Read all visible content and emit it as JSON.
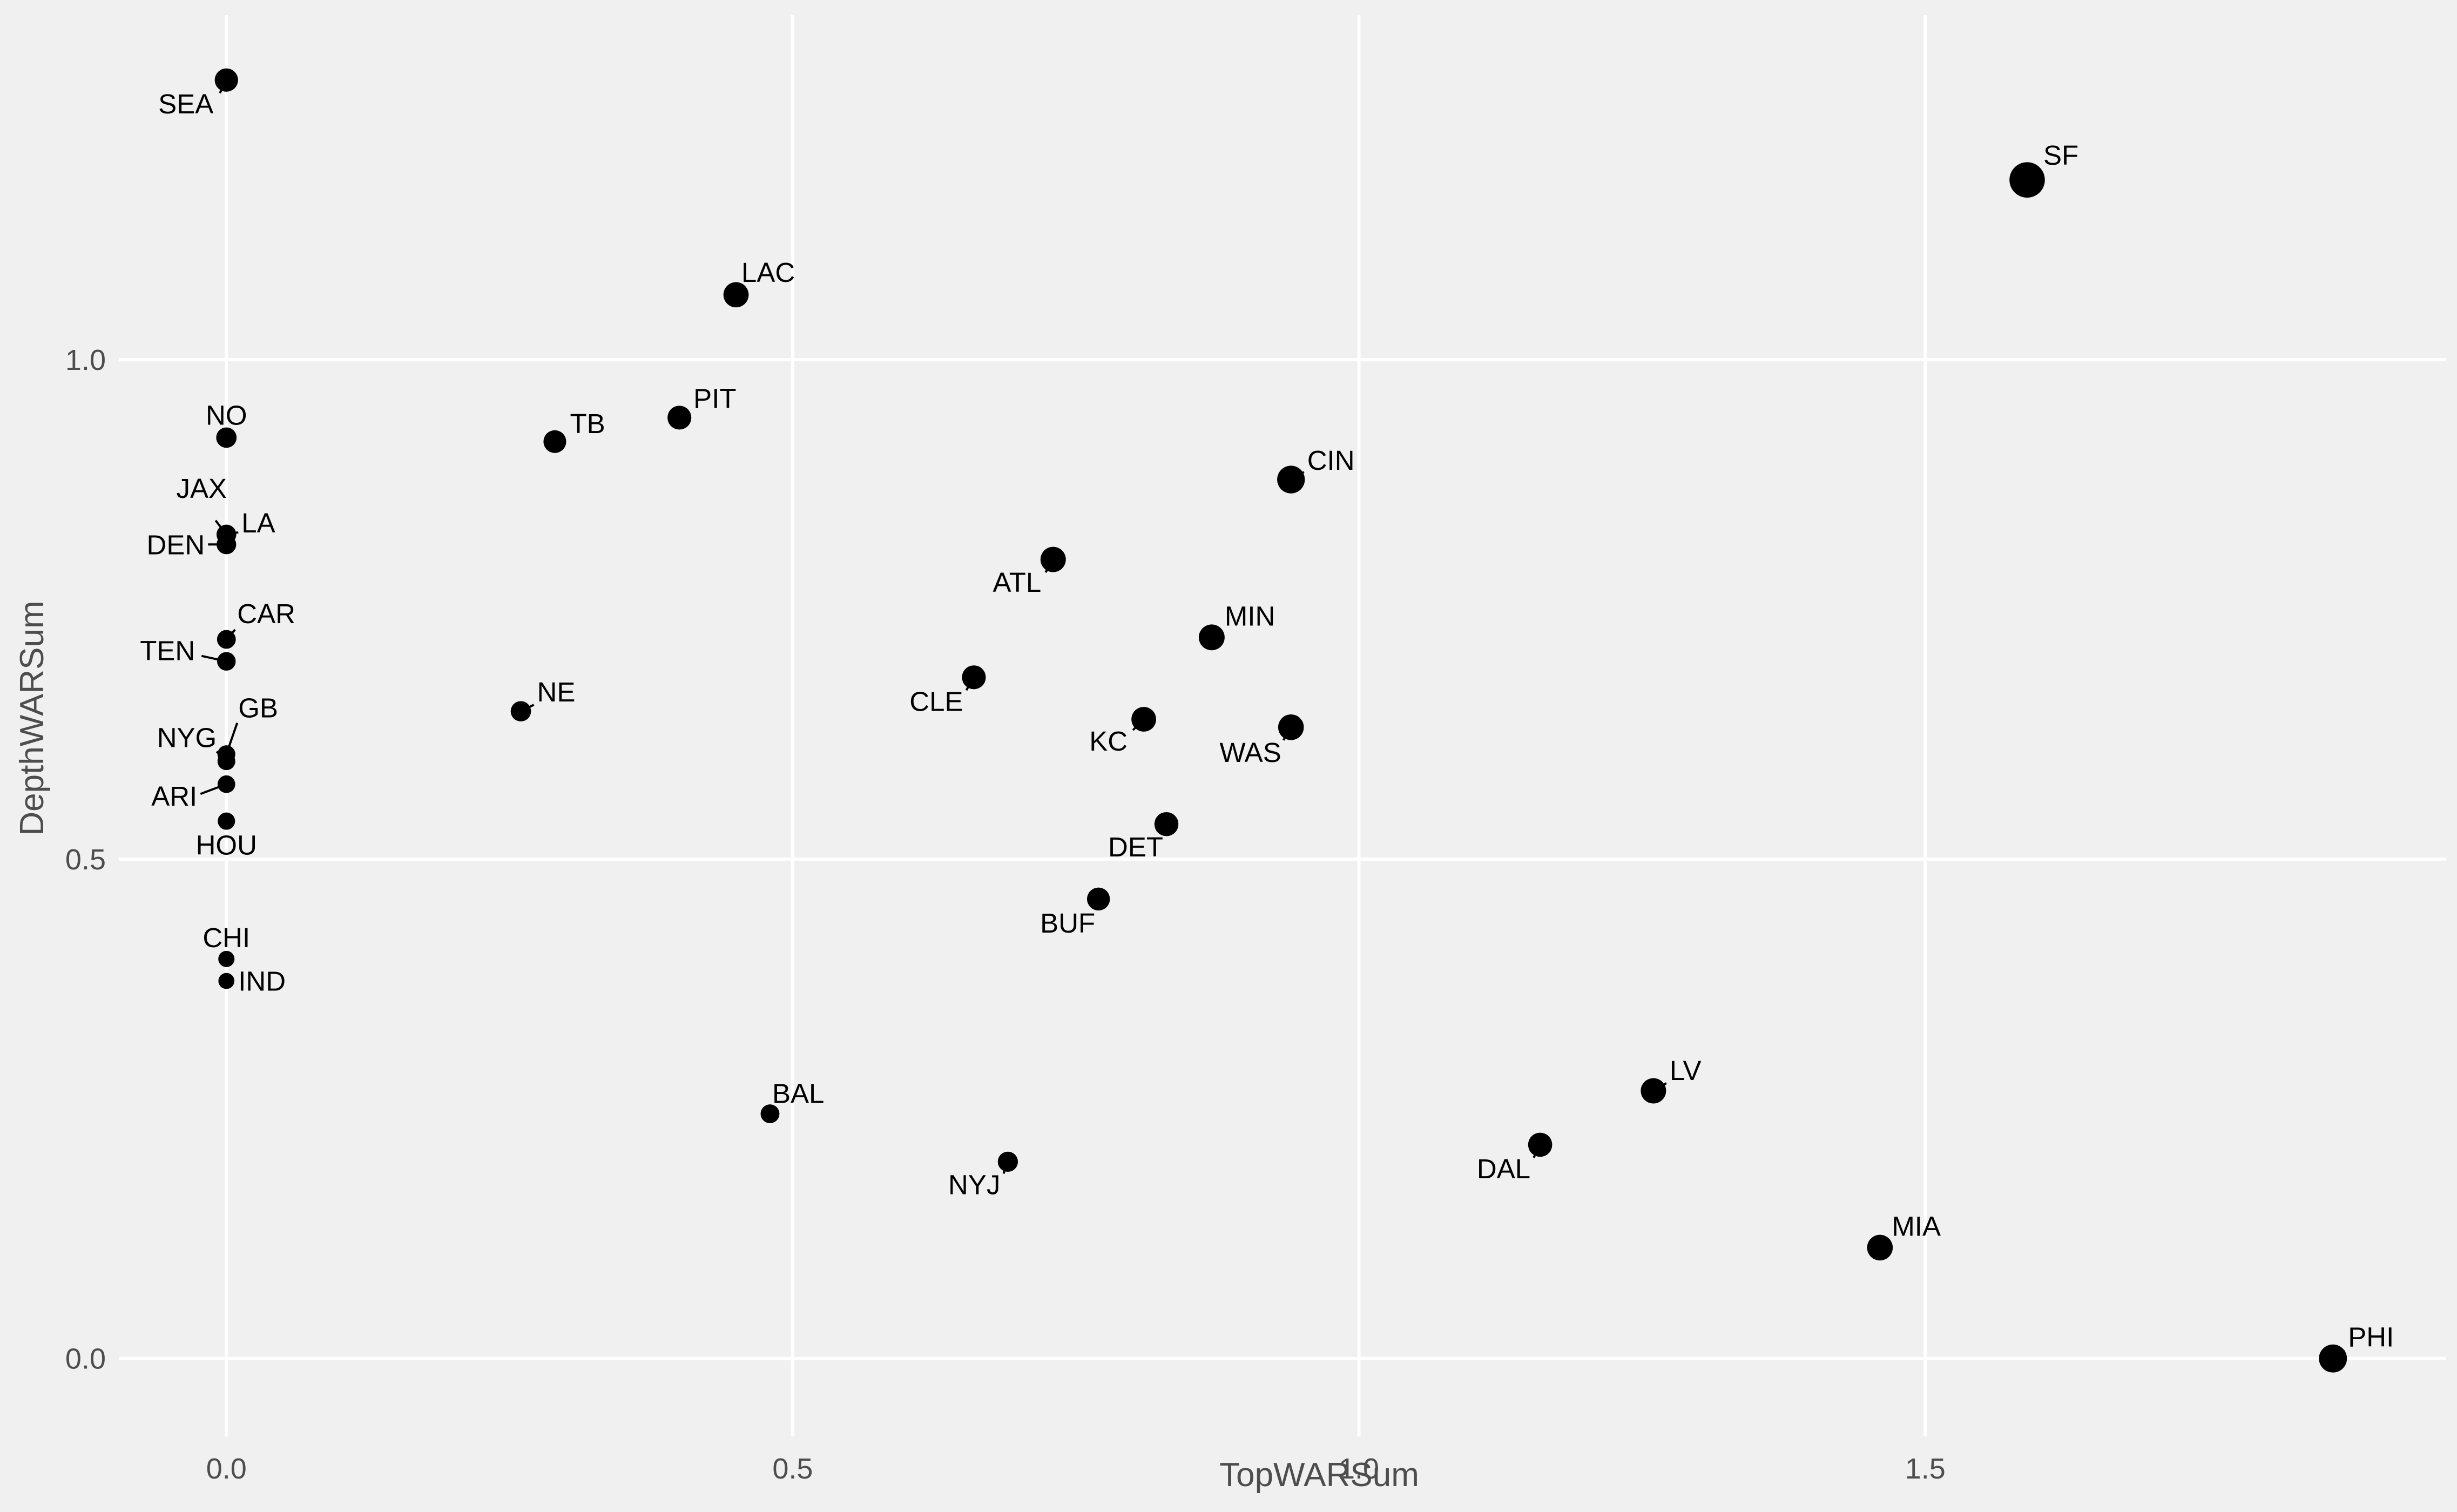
{
  "chart_data": {
    "type": "scatter",
    "xlabel": "TopWARSum",
    "ylabel": "DepthWARSum",
    "xlim": [
      -0.095,
      1.96
    ],
    "ylim": [
      -0.078,
      1.345
    ],
    "x_ticks": [
      0.0,
      0.5,
      1.0,
      1.5
    ],
    "x_tick_labels": [
      "0.0",
      "0.5",
      "1.0",
      "1.5"
    ],
    "y_ticks": [
      0.0,
      0.5,
      1.0
    ],
    "y_tick_labels": [
      "0.0",
      "0.5",
      "1.0"
    ],
    "grid": true,
    "background": "#f0f0f0",
    "grid_color": "#ffffff",
    "point_color": "#000000",
    "size_encoding": "larger TopWARSum + DepthWARSum drawn as larger points",
    "points": [
      {
        "label": "SEA",
        "x": 0.0,
        "y": 1.28
      },
      {
        "label": "SF",
        "x": 1.59,
        "y": 1.18
      },
      {
        "label": "LAC",
        "x": 0.45,
        "y": 1.065
      },
      {
        "label": "NO",
        "x": 0.0,
        "y": 0.922
      },
      {
        "label": "TB",
        "x": 0.29,
        "y": 0.918
      },
      {
        "label": "PIT",
        "x": 0.4,
        "y": 0.942
      },
      {
        "label": "CIN",
        "x": 0.94,
        "y": 0.88
      },
      {
        "label": "JAX",
        "x": 0.0,
        "y": 0.825
      },
      {
        "label": "LA",
        "x": 0.0,
        "y": 0.825
      },
      {
        "label": "DEN",
        "x": 0.0,
        "y": 0.815
      },
      {
        "label": "ATL",
        "x": 0.73,
        "y": 0.8
      },
      {
        "label": "MIN",
        "x": 0.87,
        "y": 0.722
      },
      {
        "label": "CAR",
        "x": 0.0,
        "y": 0.72
      },
      {
        "label": "TEN",
        "x": 0.0,
        "y": 0.698
      },
      {
        "label": "CLE",
        "x": 0.66,
        "y": 0.682
      },
      {
        "label": "NE",
        "x": 0.26,
        "y": 0.648
      },
      {
        "label": "KC",
        "x": 0.81,
        "y": 0.64
      },
      {
        "label": "WAS",
        "x": 0.94,
        "y": 0.632
      },
      {
        "label": "GB",
        "x": 0.0,
        "y": 0.605
      },
      {
        "label": "NYG",
        "x": 0.0,
        "y": 0.598
      },
      {
        "label": "ARI",
        "x": 0.0,
        "y": 0.575
      },
      {
        "label": "HOU",
        "x": 0.0,
        "y": 0.538
      },
      {
        "label": "DET",
        "x": 0.83,
        "y": 0.535
      },
      {
        "label": "BUF",
        "x": 0.77,
        "y": 0.46
      },
      {
        "label": "CHI",
        "x": 0.0,
        "y": 0.4
      },
      {
        "label": "IND",
        "x": 0.0,
        "y": 0.378
      },
      {
        "label": "LV",
        "x": 1.26,
        "y": 0.268
      },
      {
        "label": "BAL",
        "x": 0.48,
        "y": 0.245
      },
      {
        "label": "DAL",
        "x": 1.16,
        "y": 0.214
      },
      {
        "label": "NYJ",
        "x": 0.69,
        "y": 0.197
      },
      {
        "label": "MIA",
        "x": 1.46,
        "y": 0.111
      },
      {
        "label": "PHI",
        "x": 1.86,
        "y": 0.0
      }
    ]
  }
}
